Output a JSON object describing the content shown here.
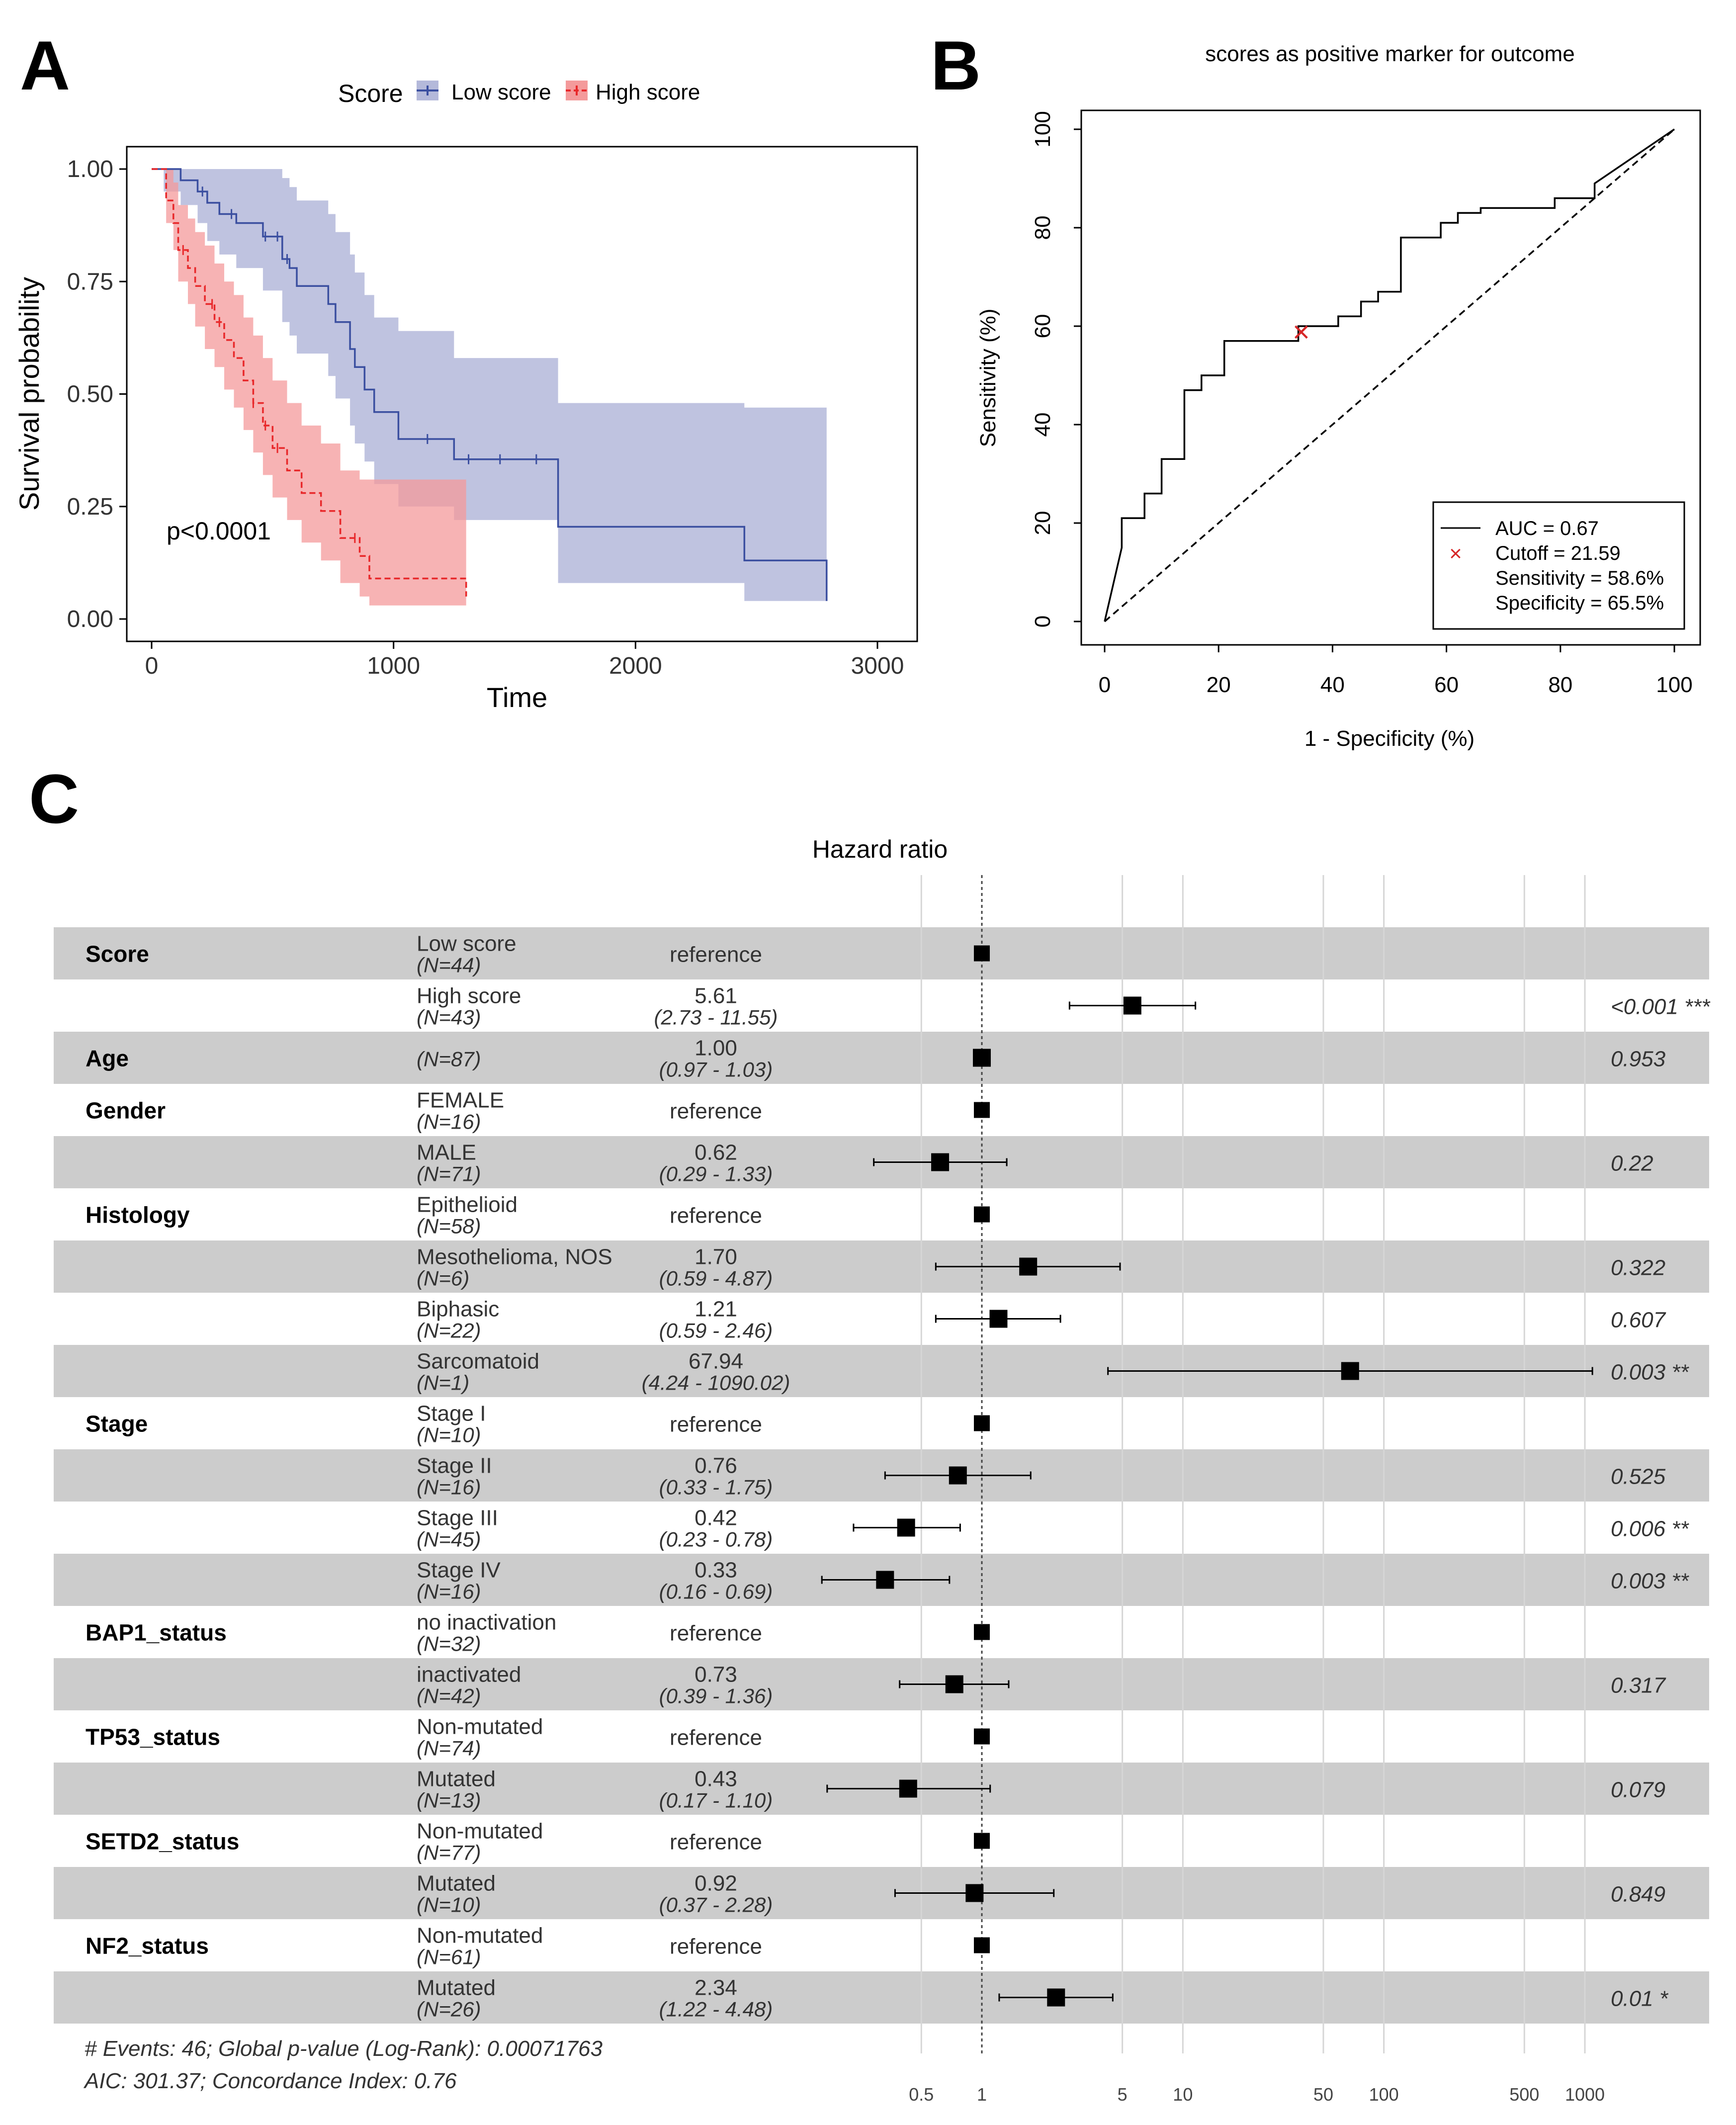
{
  "panels": {
    "a": "A",
    "b": "B",
    "c": "C"
  },
  "chart_data": [
    {
      "type": "line",
      "panel": "A",
      "title": "",
      "xlabel": "Time",
      "ylabel": "Survival probability",
      "xlim": [
        0,
        3000
      ],
      "ylim": [
        0,
        1
      ],
      "xticks": [
        "0",
        "1000",
        "2000",
        "3000"
      ],
      "yticks": [
        "0.00",
        "0.25",
        "0.50",
        "0.75",
        "1.00"
      ],
      "legend_title": "Score",
      "legend_position": "top",
      "annotation": "p<0.0001",
      "colors": {
        "low": "#3b4fa0",
        "high": "#e8282a",
        "low_band": "#b4b9da",
        "high_band": "#f49a9b",
        "overlap": "#c28595"
      },
      "series": [
        {
          "name": "Low score",
          "style": "solid",
          "x": [
            0,
            50,
            120,
            190,
            230,
            280,
            350,
            460,
            540,
            570,
            600,
            660,
            730,
            760,
            820,
            840,
            880,
            920,
            1020,
            1250,
            1680,
            2450,
            2790
          ],
          "y": [
            1.0,
            1.0,
            0.975,
            0.95,
            0.925,
            0.9,
            0.88,
            0.85,
            0.8,
            0.78,
            0.74,
            0.74,
            0.7,
            0.66,
            0.6,
            0.56,
            0.51,
            0.46,
            0.4,
            0.355,
            0.205,
            0.13,
            0.04
          ],
          "band_lower": [
            1.0,
            0.95,
            0.92,
            0.88,
            0.84,
            0.81,
            0.78,
            0.73,
            0.66,
            0.63,
            0.59,
            0.59,
            0.54,
            0.49,
            0.43,
            0.39,
            0.35,
            0.3,
            0.25,
            0.22,
            0.08,
            0.04,
            0.02
          ],
          "band_upper": [
            1.0,
            1.0,
            1.0,
            1.0,
            1.0,
            1.0,
            1.0,
            1.0,
            0.98,
            0.96,
            0.93,
            0.93,
            0.9,
            0.86,
            0.81,
            0.77,
            0.72,
            0.67,
            0.64,
            0.58,
            0.48,
            0.47,
            0.47
          ],
          "censor_x": [
            210,
            330,
            470,
            520,
            560,
            1140,
            1310,
            1440,
            1590
          ]
        },
        {
          "name": "High score",
          "style": "dashed",
          "x": [
            0,
            60,
            90,
            110,
            150,
            180,
            220,
            260,
            300,
            340,
            380,
            420,
            460,
            500,
            560,
            620,
            700,
            780,
            860,
            900,
            1000,
            1300
          ],
          "y": [
            1.0,
            0.93,
            0.88,
            0.82,
            0.78,
            0.74,
            0.7,
            0.66,
            0.62,
            0.58,
            0.53,
            0.48,
            0.43,
            0.38,
            0.33,
            0.28,
            0.24,
            0.18,
            0.14,
            0.09,
            0.09,
            0.05
          ],
          "band_lower": [
            1.0,
            0.88,
            0.82,
            0.75,
            0.7,
            0.65,
            0.6,
            0.56,
            0.51,
            0.47,
            0.42,
            0.37,
            0.32,
            0.27,
            0.22,
            0.17,
            0.13,
            0.08,
            0.05,
            0.03,
            0.03,
            0.03
          ],
          "band_upper": [
            1.0,
            1.0,
            0.97,
            0.92,
            0.89,
            0.86,
            0.83,
            0.79,
            0.75,
            0.72,
            0.67,
            0.63,
            0.58,
            0.53,
            0.48,
            0.43,
            0.39,
            0.33,
            0.31,
            0.31,
            0.31,
            0.31
          ],
          "censor_x": [
            130,
            250,
            280,
            420,
            470,
            520,
            840
          ]
        }
      ]
    },
    {
      "type": "line",
      "panel": "B",
      "title": "scores as positive marker for outcome",
      "xlabel": "1 - Specificity (%)",
      "ylabel": "Sensitivity (%)",
      "xlim": [
        0,
        100
      ],
      "ylim": [
        0,
        100
      ],
      "xticks": [
        "0",
        "20",
        "40",
        "60",
        "80",
        "100"
      ],
      "yticks": [
        "0",
        "20",
        "40",
        "60",
        "80",
        "100"
      ],
      "series": [
        {
          "name": "ROC",
          "x": [
            0,
            3,
            3,
            7,
            7,
            10,
            10,
            14,
            14,
            17,
            17,
            21,
            21,
            34,
            34,
            41,
            41,
            45,
            45,
            48,
            48,
            52,
            52,
            59,
            59,
            62,
            62,
            66,
            66,
            79,
            79,
            86,
            86,
            100
          ],
          "y": [
            0,
            15,
            21,
            21,
            26,
            26,
            33,
            33,
            47,
            47,
            50,
            50,
            57,
            57,
            60,
            60,
            62,
            62,
            65,
            65,
            67,
            67,
            78,
            78,
            81,
            81,
            83,
            83,
            84,
            84,
            86,
            86,
            89,
            100
          ]
        },
        {
          "name": "reference",
          "style": "dashed",
          "x": [
            0,
            100
          ],
          "y": [
            0,
            100
          ]
        }
      ],
      "cutoff_point": {
        "x": 34.5,
        "y": 58.6
      },
      "legend": [
        "AUC = 0.67",
        "Cutoff = 21.59",
        "Sensitivity = 58.6%",
        "Specificity = 65.5%"
      ],
      "legend_position": "bottom-right"
    },
    {
      "type": "forest",
      "panel": "C",
      "title": "Hazard ratio",
      "x_scale": "log",
      "xticks": [
        0.5,
        1,
        5,
        10,
        50,
        100,
        500,
        1000
      ],
      "xtick_labels": [
        "0.5",
        "1",
        "5",
        "10",
        "50",
        "100",
        "500",
        "1000"
      ],
      "rows": [
        {
          "var": "Score",
          "level": "Low score",
          "n": "(N=44)",
          "hr": 1.0,
          "est": "reference",
          "ci": "",
          "p": "",
          "lo": null,
          "hi": null,
          "shade": true
        },
        {
          "var": "",
          "level": "High score",
          "n": "(N=43)",
          "hr": 5.61,
          "est": "5.61",
          "ci": "(2.73 -   11.55)",
          "p": "<0.001 ***",
          "lo": 2.73,
          "hi": 11.55,
          "shade": false
        },
        {
          "var": "Age",
          "level": "",
          "n": "(N=87)",
          "hr": 1.0,
          "est": "1.00",
          "ci": "(0.97 -    1.03)",
          "p": "0.953",
          "lo": 0.97,
          "hi": 1.03,
          "shade": true
        },
        {
          "var": "Gender",
          "level": "FEMALE",
          "n": "(N=16)",
          "hr": 1.0,
          "est": "reference",
          "ci": "",
          "p": "",
          "lo": null,
          "hi": null,
          "shade": false
        },
        {
          "var": "",
          "level": "MALE",
          "n": "(N=71)",
          "hr": 0.62,
          "est": "0.62",
          "ci": "(0.29 -    1.33)",
          "p": "0.22",
          "lo": 0.29,
          "hi": 1.33,
          "shade": true
        },
        {
          "var": "Histology",
          "level": "Epithelioid",
          "n": "(N=58)",
          "hr": 1.0,
          "est": "reference",
          "ci": "",
          "p": "",
          "lo": null,
          "hi": null,
          "shade": false
        },
        {
          "var": "",
          "level": "Mesothelioma, NOS",
          "n": "(N=6)",
          "hr": 1.7,
          "est": "1.70",
          "ci": "(0.59 -    4.87)",
          "p": "0.322",
          "lo": 0.59,
          "hi": 4.87,
          "shade": true
        },
        {
          "var": "",
          "level": "Biphasic",
          "n": "(N=22)",
          "hr": 1.21,
          "est": "1.21",
          "ci": "(0.59 -    2.46)",
          "p": "0.607",
          "lo": 0.59,
          "hi": 2.46,
          "shade": false
        },
        {
          "var": "",
          "level": "Sarcomatoid",
          "n": "(N=1)",
          "hr": 67.94,
          "est": "67.94",
          "ci": "(4.24 - 1090.02)",
          "p": "0.003 **",
          "lo": 4.24,
          "hi": 1090.02,
          "shade": true
        },
        {
          "var": "Stage",
          "level": "Stage I",
          "n": "(N=10)",
          "hr": 1.0,
          "est": "reference",
          "ci": "",
          "p": "",
          "lo": null,
          "hi": null,
          "shade": false
        },
        {
          "var": "",
          "level": "Stage II",
          "n": "(N=16)",
          "hr": 0.76,
          "est": "0.76",
          "ci": "(0.33 -    1.75)",
          "p": "0.525",
          "lo": 0.33,
          "hi": 1.75,
          "shade": true
        },
        {
          "var": "",
          "level": "Stage III",
          "n": "(N=45)",
          "hr": 0.42,
          "est": "0.42",
          "ci": "(0.23 -    0.78)",
          "p": "0.006 **",
          "lo": 0.23,
          "hi": 0.78,
          "shade": false
        },
        {
          "var": "",
          "level": "Stage IV",
          "n": "(N=16)",
          "hr": 0.33,
          "est": "0.33",
          "ci": "(0.16 -    0.69)",
          "p": "0.003 **",
          "lo": 0.16,
          "hi": 0.69,
          "shade": true
        },
        {
          "var": "BAP1_status",
          "level": "no inactivation",
          "n": "(N=32)",
          "hr": 1.0,
          "est": "reference",
          "ci": "",
          "p": "",
          "lo": null,
          "hi": null,
          "shade": false
        },
        {
          "var": "",
          "level": "inactivated",
          "n": "(N=42)",
          "hr": 0.73,
          "est": "0.73",
          "ci": "(0.39 -    1.36)",
          "p": "0.317",
          "lo": 0.39,
          "hi": 1.36,
          "shade": true
        },
        {
          "var": "TP53_status",
          "level": "Non-mutated",
          "n": "(N=74)",
          "hr": 1.0,
          "est": "reference",
          "ci": "",
          "p": "",
          "lo": null,
          "hi": null,
          "shade": false
        },
        {
          "var": "",
          "level": "Mutated",
          "n": "(N=13)",
          "hr": 0.43,
          "est": "0.43",
          "ci": "(0.17 -    1.10)",
          "p": "0.079",
          "lo": 0.17,
          "hi": 1.1,
          "shade": true
        },
        {
          "var": "SETD2_status",
          "level": "Non-mutated",
          "n": "(N=77)",
          "hr": 1.0,
          "est": "reference",
          "ci": "",
          "p": "",
          "lo": null,
          "hi": null,
          "shade": false
        },
        {
          "var": "",
          "level": "Mutated",
          "n": "(N=10)",
          "hr": 0.92,
          "est": "0.92",
          "ci": "(0.37 -    2.28)",
          "p": "0.849",
          "lo": 0.37,
          "hi": 2.28,
          "shade": true
        },
        {
          "var": "NF2_status",
          "level": "Non-mutated",
          "n": "(N=61)",
          "hr": 1.0,
          "est": "reference",
          "ci": "",
          "p": "",
          "lo": null,
          "hi": null,
          "shade": false
        },
        {
          "var": "",
          "level": "Mutated",
          "n": "(N=26)",
          "hr": 2.34,
          "est": "2.34",
          "ci": "(1.22 -    4.48)",
          "p": "0.01 *",
          "lo": 1.22,
          "hi": 4.48,
          "shade": true
        }
      ],
      "footer": [
        "# Events: 46; Global p-value (Log-Rank): 0.00071763",
        "AIC: 301.37; Concordance Index: 0.76"
      ]
    }
  ]
}
